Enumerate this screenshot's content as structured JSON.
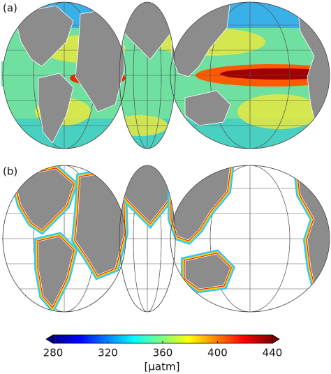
{
  "panels": [
    {
      "label": "(a)"
    },
    {
      "label": "(b)"
    }
  ],
  "colorbar": {
    "range": [
      280,
      440
    ],
    "ticks": [
      280,
      320,
      360,
      400,
      440
    ],
    "label": "[µatm]",
    "colormap": "jet"
  }
}
